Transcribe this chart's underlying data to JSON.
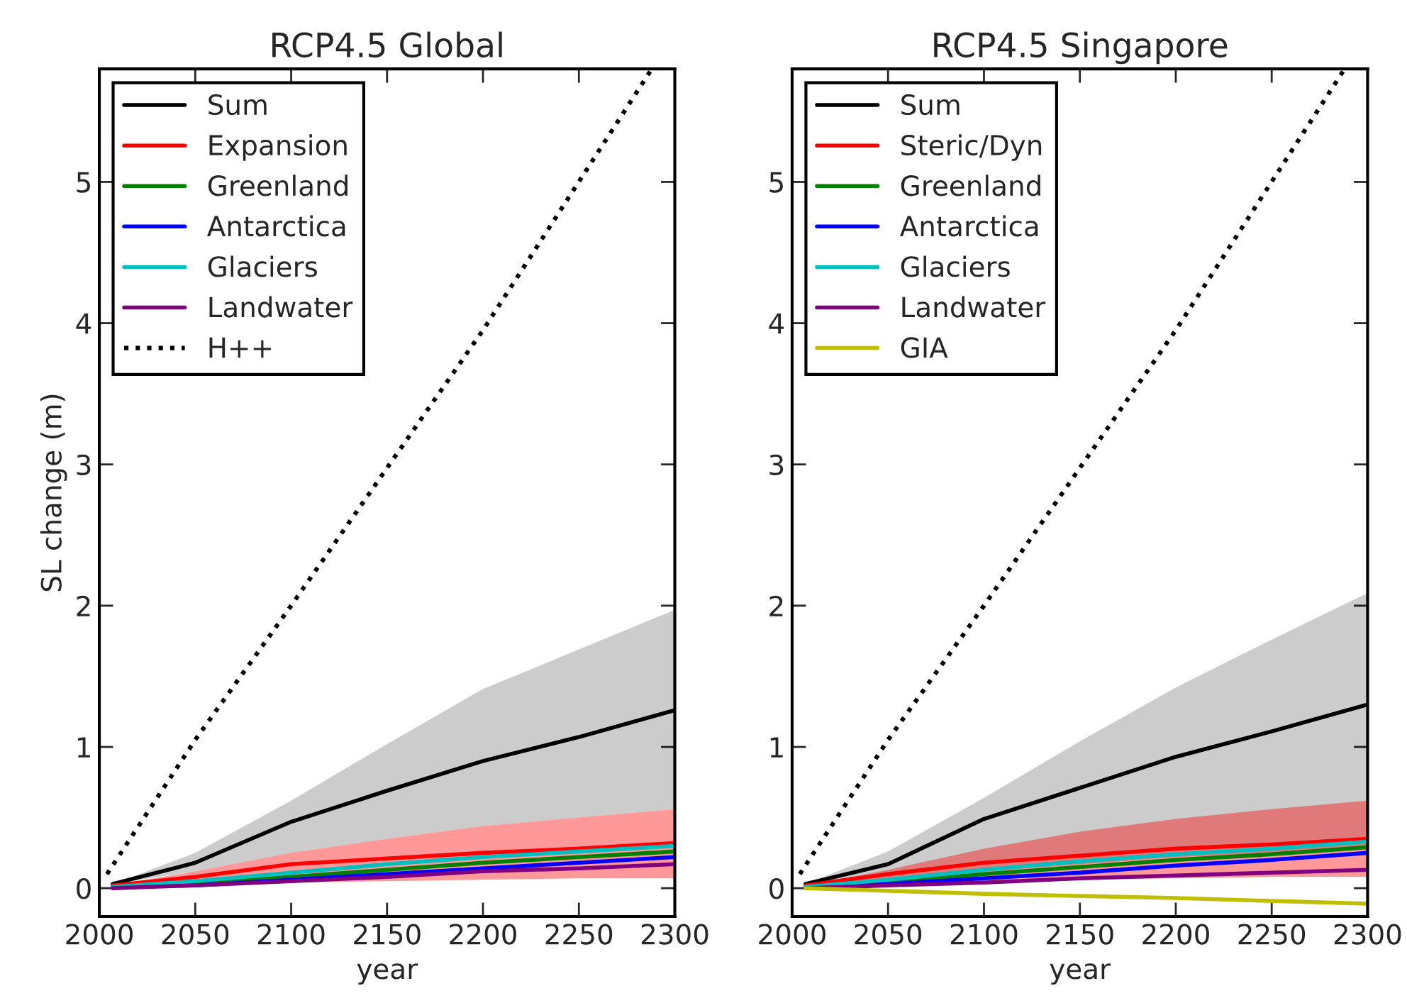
{
  "chart_data": [
    {
      "type": "line",
      "title": "RCP4.5 Global",
      "xlabel": "year",
      "ylabel": "SL change (m)",
      "xlim": [
        2000,
        2300
      ],
      "xticks": [
        2000,
        2050,
        2100,
        2150,
        2200,
        2250,
        2300
      ],
      "ylim": [
        -0.2,
        5.8
      ],
      "yticks": [
        0,
        1,
        2,
        3,
        4,
        5
      ],
      "legend": "top left",
      "grid": false,
      "series": [
        {
          "name": "Sum",
          "color": "#000000",
          "x": [
            2007,
            2050,
            2100,
            2150,
            2200,
            2250,
            2300
          ],
          "values": [
            0.03,
            0.18,
            0.47,
            0.69,
            0.9,
            1.07,
            1.26
          ],
          "lower": [
            0.03,
            0.12,
            0.25,
            0.35,
            0.44,
            0.5,
            0.56
          ],
          "upper": [
            0.03,
            0.25,
            0.62,
            1.02,
            1.41,
            1.69,
            1.97
          ]
        },
        {
          "name": "Expansion",
          "color": "#ff0000",
          "x": [
            2007,
            2050,
            2100,
            2150,
            2200,
            2250,
            2300
          ],
          "values": [
            0.02,
            0.08,
            0.17,
            0.21,
            0.25,
            0.28,
            0.32
          ],
          "lower": [
            0.02,
            0.02,
            0.04,
            0.05,
            0.06,
            0.07,
            0.07
          ],
          "upper": [
            0.02,
            0.12,
            0.25,
            0.35,
            0.44,
            0.5,
            0.56
          ]
        },
        {
          "name": "Greenland",
          "color": "#008000",
          "x": [
            2007,
            2050,
            2100,
            2150,
            2200,
            2250,
            2300
          ],
          "values": [
            0.01,
            0.03,
            0.08,
            0.13,
            0.18,
            0.22,
            0.26
          ]
        },
        {
          "name": "Antarctica",
          "color": "#0000ff",
          "x": [
            2007,
            2050,
            2100,
            2150,
            2200,
            2250,
            2300
          ],
          "values": [
            0.01,
            0.02,
            0.06,
            0.1,
            0.14,
            0.18,
            0.22
          ]
        },
        {
          "name": "Glaciers",
          "color": "#00bfbf",
          "x": [
            2007,
            2050,
            2100,
            2150,
            2200,
            2250,
            2300
          ],
          "values": [
            0.01,
            0.05,
            0.11,
            0.17,
            0.22,
            0.26,
            0.3
          ]
        },
        {
          "name": "Landwater",
          "color": "#800080",
          "x": [
            2007,
            2050,
            2100,
            2150,
            2200,
            2250,
            2300
          ],
          "values": [
            0.0,
            0.02,
            0.05,
            0.08,
            0.12,
            0.14,
            0.17
          ]
        },
        {
          "name": "H++",
          "color": "#000000",
          "line_style": "dotted",
          "x": [
            2004,
            2050,
            2100,
            2200,
            2288
          ],
          "values": [
            0.1,
            1.05,
            2.0,
            3.95,
            5.8
          ]
        }
      ]
    },
    {
      "type": "line",
      "title": "RCP4.5 Singapore",
      "xlabel": "year",
      "xlim": [
        2000,
        2300
      ],
      "xticks": [
        2000,
        2050,
        2100,
        2150,
        2200,
        2250,
        2300
      ],
      "ylim": [
        -0.2,
        5.8
      ],
      "yticks": [
        0,
        1,
        2,
        3,
        4,
        5
      ],
      "legend": "top left",
      "grid": false,
      "series": [
        {
          "name": "Sum",
          "color": "#000000",
          "x": [
            2007,
            2050,
            2100,
            2150,
            2200,
            2250,
            2300
          ],
          "values": [
            0.03,
            0.17,
            0.49,
            0.71,
            0.93,
            1.11,
            1.3
          ],
          "lower": [
            0.03,
            0.06,
            0.12,
            0.17,
            0.22,
            0.25,
            0.28
          ],
          "upper": [
            0.03,
            0.26,
            0.64,
            1.04,
            1.42,
            1.76,
            2.09
          ]
        },
        {
          "name": "Steric/Dyn",
          "color": "#ff0000",
          "x": [
            2007,
            2050,
            2100,
            2150,
            2200,
            2250,
            2300
          ],
          "values": [
            0.02,
            0.1,
            0.18,
            0.23,
            0.28,
            0.31,
            0.35
          ],
          "lower": [
            0.02,
            0.02,
            0.04,
            0.06,
            0.07,
            0.08,
            0.08
          ],
          "upper": [
            0.02,
            0.13,
            0.28,
            0.4,
            0.49,
            0.56,
            0.62
          ]
        },
        {
          "name": "Greenland",
          "color": "#008000",
          "x": [
            2007,
            2050,
            2100,
            2150,
            2200,
            2250,
            2300
          ],
          "values": [
            0.01,
            0.04,
            0.1,
            0.15,
            0.2,
            0.24,
            0.29
          ]
        },
        {
          "name": "Antarctica",
          "color": "#0000ff",
          "x": [
            2007,
            2050,
            2100,
            2150,
            2200,
            2250,
            2300
          ],
          "values": [
            0.01,
            0.03,
            0.07,
            0.11,
            0.16,
            0.2,
            0.25
          ]
        },
        {
          "name": "Glaciers",
          "color": "#00bfbf",
          "x": [
            2007,
            2050,
            2100,
            2150,
            2200,
            2250,
            2300
          ],
          "values": [
            0.01,
            0.06,
            0.13,
            0.19,
            0.24,
            0.28,
            0.33
          ]
        },
        {
          "name": "Landwater",
          "color": "#800080",
          "x": [
            2007,
            2050,
            2100,
            2150,
            2200,
            2250,
            2300
          ],
          "values": [
            0.0,
            0.02,
            0.04,
            0.07,
            0.09,
            0.11,
            0.13
          ]
        },
        {
          "name": "GIA",
          "color": "#bfbf00",
          "x": [
            2007,
            2100,
            2200,
            2300
          ],
          "values": [
            0.0,
            -0.04,
            -0.07,
            -0.11
          ]
        },
        {
          "color": "#000000",
          "line_style": "dotted",
          "x": [
            2004,
            2050,
            2100,
            2200,
            2288
          ],
          "values": [
            0.1,
            1.05,
            2.0,
            3.95,
            5.8
          ]
        }
      ]
    }
  ]
}
